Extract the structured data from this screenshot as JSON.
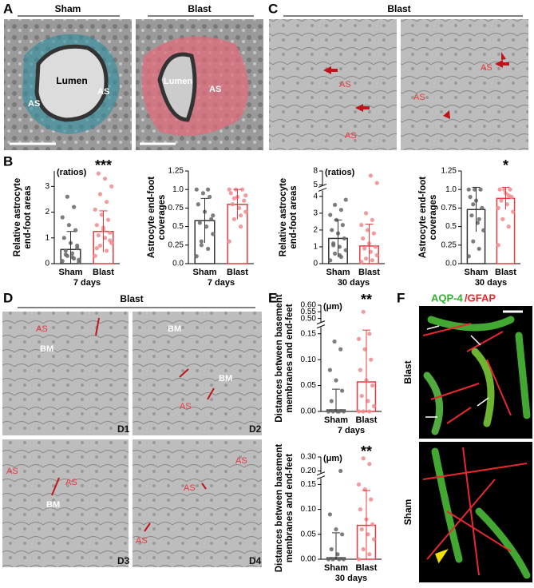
{
  "figure": {
    "panel_labels": [
      "A",
      "B",
      "C",
      "D",
      "E",
      "F"
    ],
    "A": {
      "headers": [
        "Sham",
        "Blast"
      ],
      "left_labels": [
        "Lumen",
        "AS",
        "AS"
      ],
      "right_labels": [
        "Lumen",
        "AS"
      ]
    },
    "C": {
      "header": "Blast",
      "left_labels": [
        "AS",
        "AS"
      ],
      "right_labels": [
        "AS",
        "AS"
      ]
    },
    "D": {
      "header": "Blast",
      "images": [
        {
          "id": "D1",
          "labels": [
            "AS",
            "BM"
          ]
        },
        {
          "id": "D2",
          "labels": [
            "BM",
            "BM",
            "AS"
          ]
        },
        {
          "id": "D3",
          "labels": [
            "AS",
            "AS",
            "BM"
          ]
        },
        {
          "id": "D4",
          "labels": [
            "AS",
            "AS",
            "AS"
          ]
        }
      ]
    },
    "F": {
      "stain_green": "AQP-4",
      "stain_red": "/GFAP",
      "rows": [
        "Blast",
        "Sham"
      ]
    }
  },
  "chart_data": [
    {
      "type": "bar",
      "ylabel": [
        "Relative astrocyte",
        "end-foot areas"
      ],
      "xlabel": "7 days",
      "unit": "(ratios)",
      "significance": "***",
      "categories": [
        "Sham",
        "Blast"
      ],
      "colors": [
        "#333333",
        "#e8383d"
      ],
      "values": [
        0.55,
        1.25
      ],
      "errors": [
        0.7,
        0.8
      ],
      "points": [
        [
          0.1,
          0.2,
          0.3,
          0.15,
          0.4,
          0.5,
          0.6,
          0.8,
          1.0,
          1.3,
          1.5,
          1.8,
          2.2,
          2.6,
          0.05,
          0.25,
          0.35,
          0.7
        ],
        [
          0.3,
          0.5,
          0.7,
          0.8,
          1.0,
          1.1,
          1.2,
          1.3,
          1.5,
          1.7,
          1.9,
          2.1,
          2.4,
          2.7,
          3.0,
          3.3,
          3.5,
          0.9,
          1.4,
          0.6
        ]
      ],
      "ylim": [
        0,
        3.6
      ],
      "yticks": [
        0,
        1,
        2,
        3
      ]
    },
    {
      "type": "bar",
      "ylabel": [
        "Astrocyte end-foot",
        "coverages"
      ],
      "xlabel": "7 days",
      "categories": [
        "Sham",
        "Blast"
      ],
      "colors": [
        "#333333",
        "#e8383d"
      ],
      "values": [
        0.58,
        0.8
      ],
      "errors": [
        0.3,
        0.2
      ],
      "points": [
        [
          0.1,
          0.2,
          0.3,
          0.4,
          0.5,
          0.55,
          0.6,
          0.7,
          0.8,
          0.9,
          0.95,
          1.0,
          1.0,
          0.25,
          0.65
        ],
        [
          0.3,
          0.5,
          0.6,
          0.7,
          0.75,
          0.8,
          0.85,
          0.9,
          0.95,
          1.0,
          1.0,
          1.0,
          0.65,
          0.88,
          0.92
        ]
      ],
      "ylim": [
        0,
        1.25
      ],
      "yticks": [
        {
          "value": 0,
          "label": "0.0"
        },
        0.25,
        {
          "value": 0.5,
          "label": "0.5"
        },
        0.75,
        {
          "value": 1,
          "label": "1.0"
        },
        1.25
      ]
    },
    {
      "type": "bar",
      "ylabel": [
        "Relative astrocyte",
        "end-foot areas"
      ],
      "xlabel": "30 days",
      "unit": "(ratios)",
      "categories": [
        "Sham",
        "Blast"
      ],
      "colors": [
        "#333333",
        "#e8383d"
      ],
      "values": [
        1.5,
        1.05
      ],
      "errors": [
        1.1,
        1.3
      ],
      "points": [
        [
          0.2,
          0.4,
          0.6,
          0.8,
          1.0,
          1.2,
          1.5,
          1.8,
          2.0,
          2.3,
          2.6,
          2.9,
          3.2,
          3.5,
          3.8,
          0.5,
          1.1
        ],
        [
          0.1,
          0.2,
          0.3,
          0.5,
          0.7,
          0.9,
          1.0,
          1.2,
          1.5,
          1.8,
          2.0,
          2.3,
          2.6,
          3.0,
          5.4,
          7.0
        ]
      ],
      "ylim": [
        0,
        8
      ],
      "ybreak": [
        4.3,
        5
      ],
      "yticks": [
        0,
        1,
        2,
        3,
        4,
        5,
        8
      ]
    },
    {
      "type": "bar",
      "ylabel": [
        "Astrocyte end-foot",
        "coverages"
      ],
      "xlabel": "30 days",
      "significance": "*",
      "categories": [
        "Sham",
        "Blast"
      ],
      "colors": [
        "#333333",
        "#e8383d"
      ],
      "values": [
        0.73,
        0.88
      ],
      "errors": [
        0.3,
        0.15
      ],
      "points": [
        [
          0.1,
          0.2,
          0.3,
          0.45,
          0.55,
          0.65,
          0.75,
          0.85,
          0.9,
          1.0,
          1.0,
          1.0,
          0.6,
          0.8
        ],
        [
          0.25,
          0.5,
          0.6,
          0.7,
          0.8,
          0.85,
          0.9,
          0.95,
          1.0,
          1.0,
          1.0,
          0.75,
          0.92
        ]
      ],
      "ylim": [
        0,
        1.25
      ],
      "yticks": [
        {
          "value": 0,
          "label": "0.0"
        },
        0.25,
        {
          "value": 0.5,
          "label": "0.5"
        },
        0.75,
        {
          "value": 1,
          "label": "1.0"
        },
        1.25
      ]
    },
    {
      "type": "bar",
      "ylabel": [
        "Distances between basement",
        "membranes and end-feet"
      ],
      "xlabel": "7 days",
      "unit": "(μm)",
      "significance": "**",
      "categories": [
        "Sham",
        "Blast"
      ],
      "colors": [
        "#333333",
        "#e8383d"
      ],
      "values": [
        0.003,
        0.057
      ],
      "errors": [
        0.04,
        0.1
      ],
      "points": [
        [
          0,
          0,
          0,
          0,
          0,
          0.02,
          0.04,
          0.06,
          0.08,
          0.12,
          0.135
        ],
        [
          0,
          0,
          0,
          0.01,
          0.02,
          0.03,
          0.05,
          0.06,
          0.08,
          0.1,
          0.12,
          0.14,
          0.15,
          0.55
        ]
      ],
      "ylim": [
        0,
        0.6
      ],
      "ybreak": [
        0.16,
        0.48
      ],
      "yticks": [
        {
          "value": 0,
          "label": "0.00"
        },
        0.05,
        {
          "value": 0.1,
          "label": "0.10"
        },
        0.15,
        {
          "value": 0.5,
          "label": "0.50"
        },
        0.55,
        {
          "value": 0.6,
          "label": "0.60"
        }
      ]
    },
    {
      "type": "bar",
      "ylabel": [
        "Distances between basement",
        "membranes and end-feet"
      ],
      "xlabel": "30 days",
      "unit": "(μm)",
      "significance": "**",
      "categories": [
        "Sham",
        "Blast"
      ],
      "colors": [
        "#333333",
        "#e8383d"
      ],
      "values": [
        0.003,
        0.068
      ],
      "errors": [
        0.05,
        0.07
      ],
      "points": [
        [
          0,
          0,
          0,
          0,
          0.01,
          0.02,
          0.05,
          0.06,
          0.09,
          0.2
        ],
        [
          0,
          0.01,
          0.02,
          0.04,
          0.05,
          0.06,
          0.07,
          0.08,
          0.1,
          0.12,
          0.14,
          0.15,
          0.25,
          0.29
        ]
      ],
      "ylim": [
        0,
        0.3
      ],
      "ybreak": [
        0.16,
        0.19
      ],
      "yticks": [
        {
          "value": 0,
          "label": "0.00"
        },
        0.05,
        {
          "value": 0.1,
          "label": "0.10"
        },
        0.15,
        {
          "value": 0.2,
          "label": "0.20"
        },
        {
          "value": 0.3,
          "label": "0.30"
        }
      ]
    }
  ]
}
